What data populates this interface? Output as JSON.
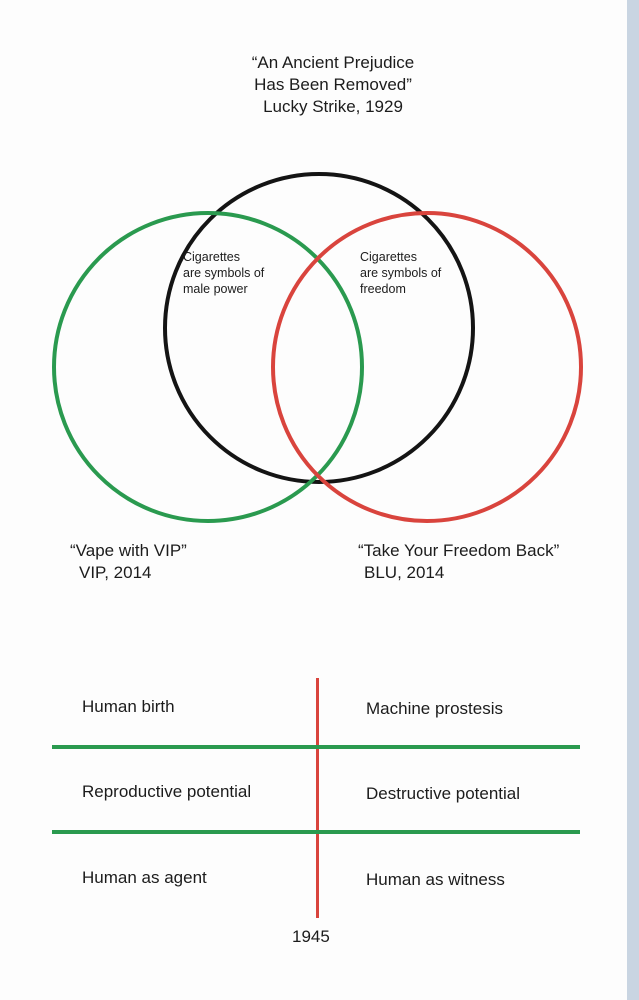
{
  "colors": {
    "circle_top": "#141414",
    "circle_left": "#2a9a4f",
    "circle_right": "#d9443d",
    "divider_vertical": "#d9443d",
    "divider_horizontal": "#2a9a4f"
  },
  "venn": {
    "top": {
      "quote_line1": "“An Ancient Prejudice",
      "quote_line2": "Has Been Removed”",
      "source": "Lucky Strike, 1929"
    },
    "left": {
      "quote": "“Vape with VIP”",
      "source": "VIP, 2014"
    },
    "right": {
      "quote": "“Take Your Freedom Back”",
      "source": "BLU, 2014"
    },
    "overlap_top_left": {
      "line1": "Cigarettes",
      "line2": "are symbols of",
      "line3": "male power"
    },
    "overlap_top_right": {
      "line1": "Cigarettes",
      "line2": "are symbols of",
      "line3": "freedom"
    }
  },
  "table": {
    "rows": [
      {
        "left": "Human birth",
        "right": "Machine prostesis"
      },
      {
        "left": "Reproductive potential",
        "right": "Destructive potential"
      },
      {
        "left": "Human as agent",
        "right": "Human as witness"
      }
    ],
    "divider_label": "1945"
  }
}
